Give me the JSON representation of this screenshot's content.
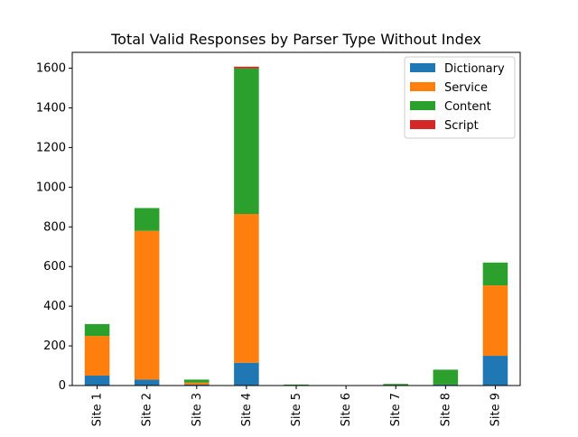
{
  "chart_data": {
    "type": "bar",
    "stacked": true,
    "title": "Total Valid Responses by Parser Type Without Index",
    "xlabel": "",
    "ylabel": "",
    "categories": [
      "Site 1",
      "Site 2",
      "Site 3",
      "Site 4",
      "Site 5",
      "Site 6",
      "Site 7",
      "Site 8",
      "Site 9"
    ],
    "ylim": [
      0,
      1680
    ],
    "yticks": [
      0,
      200,
      400,
      600,
      800,
      1000,
      1200,
      1400,
      1600
    ],
    "legend_position": "top-right",
    "grid": false,
    "series": [
      {
        "name": "Dictionary",
        "color": "#1f77b4",
        "values": [
          50,
          30,
          5,
          115,
          2,
          0,
          2,
          5,
          150
        ]
      },
      {
        "name": "Service",
        "color": "#ff7f0e",
        "values": [
          200,
          750,
          10,
          750,
          0,
          0,
          0,
          0,
          355
        ]
      },
      {
        "name": "Content",
        "color": "#2ca02c",
        "values": [
          60,
          115,
          15,
          735,
          3,
          0,
          6,
          75,
          115
        ]
      },
      {
        "name": "Script",
        "color": "#d62728",
        "values": [
          0,
          0,
          0,
          8,
          0,
          0,
          0,
          0,
          0
        ]
      }
    ]
  }
}
